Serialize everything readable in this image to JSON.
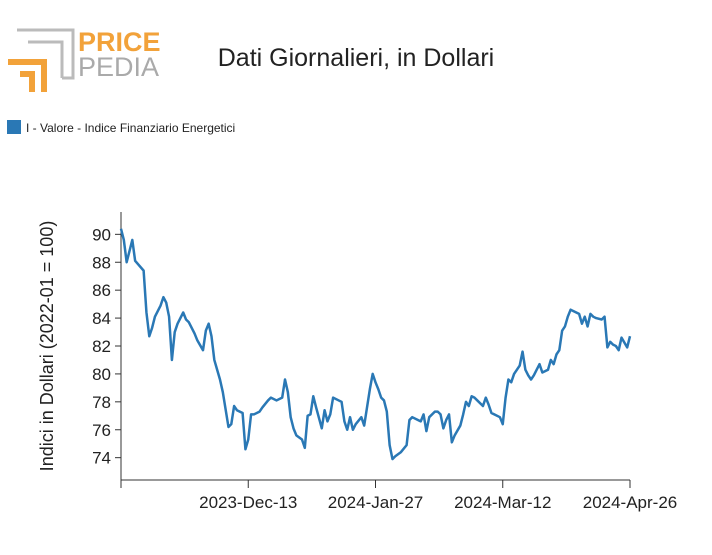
{
  "logo": {
    "top": "PRICE",
    "bottom": "PEDIA"
  },
  "chart_data": {
    "type": "line",
    "title": "Dati Giornalieri, in Dollari",
    "y_label": "Indici in Dollari (2022-01 = 100)",
    "legend": "top-left",
    "grid": false,
    "x": [
      "2023-Oct-29",
      "2023-Oct-30",
      "2023-Oct-31",
      "2023-Nov-02",
      "2023-Nov-03",
      "2023-Nov-06",
      "2023-Nov-07",
      "2023-Nov-08",
      "2023-Nov-09",
      "2023-Nov-10",
      "2023-Nov-12",
      "2023-Nov-13",
      "2023-Nov-14",
      "2023-Nov-15",
      "2023-Nov-16",
      "2023-Nov-17",
      "2023-Nov-18",
      "2023-Nov-20",
      "2023-Nov-21",
      "2023-Nov-22",
      "2023-Nov-24",
      "2023-Nov-25",
      "2023-Nov-27",
      "2023-Nov-28",
      "2023-Nov-29",
      "2023-Nov-30",
      "2023-Dec-01",
      "2023-Dec-02",
      "2023-Dec-03",
      "2023-Dec-04",
      "2023-Dec-06",
      "2023-Dec-07",
      "2023-Dec-08",
      "2023-Dec-09",
      "2023-Dec-11",
      "2023-Dec-12",
      "2023-Dec-13",
      "2023-Dec-14",
      "2023-Dec-15",
      "2023-Dec-17",
      "2023-Dec-18",
      "2023-Dec-20",
      "2023-Dec-21",
      "2023-Dec-23",
      "2023-Dec-25",
      "2023-Dec-26",
      "2023-Dec-27",
      "2023-Dec-28",
      "2023-Dec-29",
      "2023-Dec-30",
      "2024-Jan-01",
      "2024-Jan-02",
      "2024-Jan-03",
      "2024-Jan-04",
      "2024-Jan-05",
      "2024-Jan-06",
      "2024-Jan-08",
      "2024-Jan-09",
      "2024-Jan-10",
      "2024-Jan-11",
      "2024-Jan-12",
      "2024-Jan-14",
      "2024-Jan-15",
      "2024-Jan-16",
      "2024-Jan-17",
      "2024-Jan-18",
      "2024-Jan-19",
      "2024-Jan-20",
      "2024-Jan-22",
      "2024-Jan-23",
      "2024-Jan-24",
      "2024-Jan-25",
      "2024-Jan-26",
      "2024-Jan-27",
      "2024-Jan-28",
      "2024-Jan-29",
      "2024-Jan-30",
      "2024-Jan-31",
      "2024-Feb-01",
      "2024-Feb-02",
      "2024-Feb-03",
      "2024-Feb-05",
      "2024-Feb-07",
      "2024-Feb-08",
      "2024-Feb-09",
      "2024-Feb-11",
      "2024-Feb-12",
      "2024-Feb-13",
      "2024-Feb-14",
      "2024-Feb-15",
      "2024-Feb-17",
      "2024-Feb-18",
      "2024-Feb-19",
      "2024-Feb-20",
      "2024-Feb-21",
      "2024-Feb-22",
      "2024-Feb-23",
      "2024-Feb-24",
      "2024-Feb-26",
      "2024-Feb-27",
      "2024-Feb-28",
      "2024-Feb-29",
      "2024-Mar-01",
      "2024-Mar-02",
      "2024-Mar-03",
      "2024-Mar-05",
      "2024-Mar-06",
      "2024-Mar-07",
      "2024-Mar-08",
      "2024-Mar-09",
      "2024-Mar-11",
      "2024-Mar-12",
      "2024-Mar-13",
      "2024-Mar-14",
      "2024-Mar-15",
      "2024-Mar-16",
      "2024-Mar-18",
      "2024-Mar-19",
      "2024-Mar-20",
      "2024-Mar-21",
      "2024-Mar-22",
      "2024-Mar-23",
      "2024-Mar-24",
      "2024-Mar-25",
      "2024-Mar-26",
      "2024-Mar-28",
      "2024-Mar-29",
      "2024-Mar-30",
      "2024-Mar-31",
      "2024-Apr-01",
      "2024-Apr-02",
      "2024-Apr-03",
      "2024-Apr-04",
      "2024-Apr-05",
      "2024-Apr-06",
      "2024-Apr-08",
      "2024-Apr-09",
      "2024-Apr-10",
      "2024-Apr-11",
      "2024-Apr-12",
      "2024-Apr-13",
      "2024-Apr-14",
      "2024-Apr-16",
      "2024-Apr-17",
      "2024-Apr-18",
      "2024-Apr-19",
      "2024-Apr-20",
      "2024-Apr-21",
      "2024-Apr-22",
      "2024-Apr-23",
      "2024-Apr-25",
      "2024-Apr-26"
    ],
    "series": [
      {
        "name": "I - Valore - Indice Finanziario Energetici",
        "color": "#2a78b5",
        "values": [
          90.4,
          89.6,
          88.0,
          89.6,
          88.1,
          87.4,
          84.4,
          82.7,
          83.3,
          84.1,
          84.9,
          85.5,
          85.1,
          84.1,
          81.0,
          83.0,
          83.6,
          84.4,
          83.9,
          83.7,
          82.9,
          82.4,
          81.7,
          83.1,
          83.6,
          82.7,
          81.0,
          80.3,
          79.6,
          78.7,
          76.2,
          76.4,
          77.7,
          77.4,
          77.2,
          74.6,
          75.3,
          77.1,
          77.1,
          77.3,
          77.6,
          78.1,
          78.3,
          78.1,
          78.3,
          79.6,
          78.7,
          76.9,
          76.1,
          75.6,
          75.3,
          74.7,
          77.0,
          77.1,
          78.4,
          77.6,
          76.1,
          77.4,
          76.6,
          77.1,
          78.3,
          78.1,
          78.0,
          76.6,
          76.0,
          76.9,
          76.0,
          76.4,
          76.9,
          76.3,
          77.6,
          78.9,
          80.0,
          79.4,
          78.9,
          78.3,
          78.1,
          77.3,
          74.9,
          73.9,
          74.1,
          74.4,
          74.9,
          76.7,
          76.9,
          76.7,
          76.6,
          77.1,
          75.9,
          76.9,
          77.3,
          77.3,
          77.1,
          76.1,
          76.7,
          77.1,
          75.1,
          75.6,
          76.3,
          77.1,
          78.0,
          77.7,
          78.4,
          78.3,
          78.1,
          77.7,
          78.3,
          77.8,
          77.2,
          77.1,
          76.9,
          76.4,
          78.3,
          79.6,
          79.4,
          80.0,
          80.6,
          81.6,
          80.3,
          79.9,
          79.6,
          79.9,
          80.3,
          80.7,
          80.1,
          80.3,
          81.0,
          80.7,
          81.4,
          81.7,
          83.1,
          83.4,
          84.1,
          84.6,
          84.5,
          84.3,
          83.6,
          84.1,
          83.4,
          84.3,
          84.1,
          84.0,
          83.9,
          84.1,
          81.9,
          82.3,
          82.1,
          82.0,
          81.7,
          82.6,
          81.9,
          82.7
        ]
      }
    ],
    "xlim": [
      "2023-Oct-29",
      "2024-Apr-26"
    ],
    "xticks": [
      "2023-Dec-13",
      "2024-Jan-27",
      "2024-Mar-12",
      "2024-Apr-26"
    ],
    "ylim": [
      72.4,
      91.6
    ],
    "yticks": [
      74,
      76,
      78,
      80,
      82,
      84,
      86,
      88,
      90
    ]
  }
}
